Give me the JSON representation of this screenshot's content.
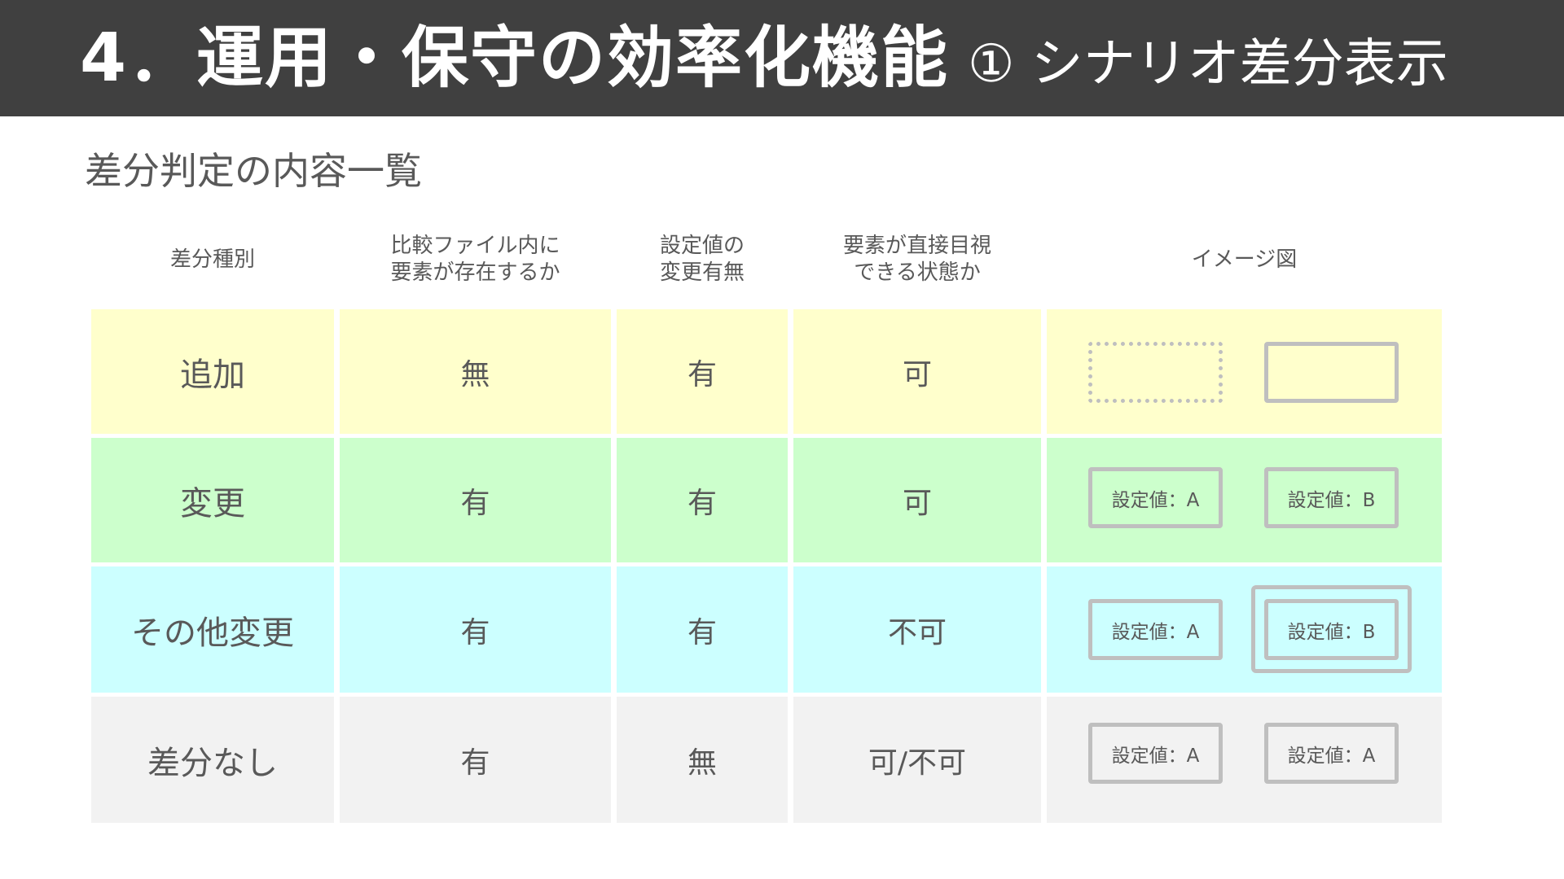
{
  "header": {
    "title": "4．運用・保守の効率化機能",
    "subtitle": "① シナリオ差分表示"
  },
  "section_title": "差分判定の内容一覧",
  "columns": [
    "差分種別",
    "比較ファイル内に\n要素が存在するか",
    "設定値の\n変更有無",
    "要素が直接目視\nできる状態か",
    "イメージ図"
  ],
  "rows": [
    {
      "type": "追加",
      "exists": "無",
      "changed": "有",
      "visible": "可",
      "image": {
        "left": "",
        "right": ""
      },
      "color": "#ffffcc"
    },
    {
      "type": "変更",
      "exists": "有",
      "changed": "有",
      "visible": "可",
      "image": {
        "left": "設定値：A",
        "right": "設定値：B"
      },
      "color": "#ccffcc"
    },
    {
      "type": "その他変更",
      "exists": "有",
      "changed": "有",
      "visible": "不可",
      "image": {
        "left": "設定値：A",
        "right": "設定値：B"
      },
      "color": "#ccffff"
    },
    {
      "type": "差分なし",
      "exists": "有",
      "changed": "無",
      "visible": "可/不可",
      "image": {
        "left": "設定値：A",
        "right": "設定値：A"
      },
      "color": "#f2f2f2"
    }
  ]
}
